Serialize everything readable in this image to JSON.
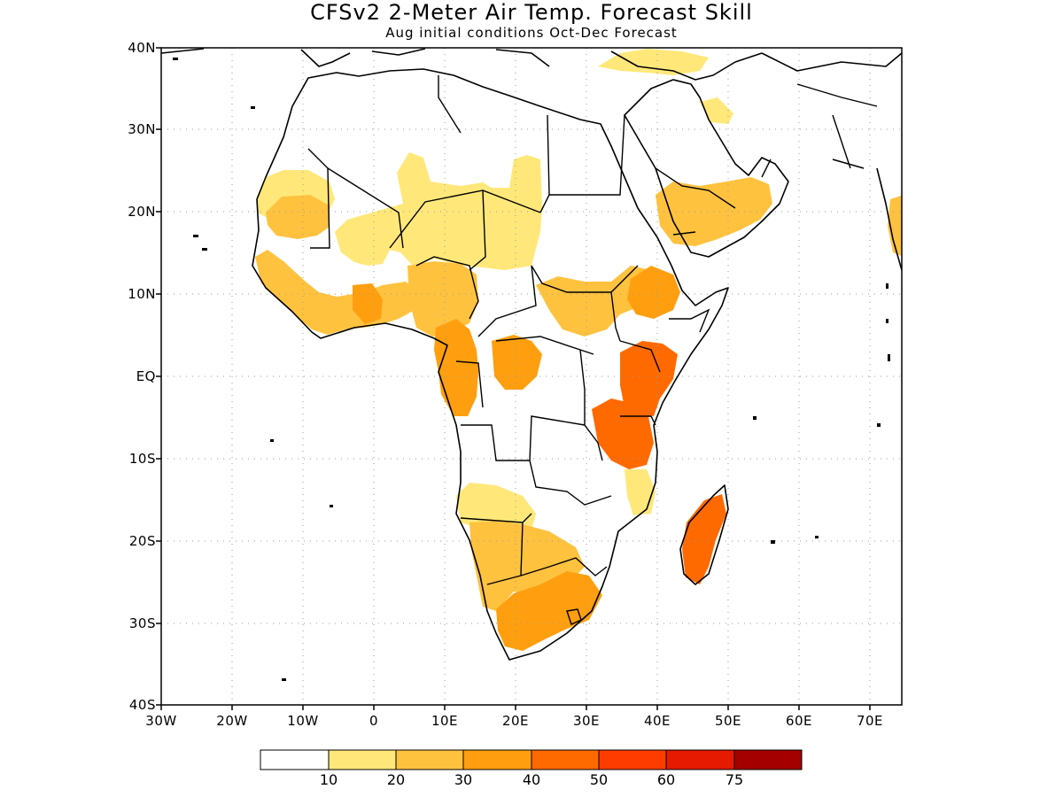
{
  "title": "CFSv2 2-Meter Air Temp. Forecast Skill",
  "subtitle": "Aug initial conditions  Oct-Dec Forecast",
  "axes": {
    "x_ticks": [
      "30W",
      "20W",
      "10W",
      "0",
      "10E",
      "20E",
      "30E",
      "40E",
      "50E",
      "60E",
      "70E"
    ],
    "y_ticks": [
      "40N",
      "30N",
      "20N",
      "10N",
      "EQ",
      "10S",
      "20S",
      "30S",
      "40S"
    ],
    "lon_range": [
      -30,
      75
    ],
    "lat_range": [
      -40,
      40
    ],
    "grid": "dotted"
  },
  "colorbar": {
    "labels": [
      "10",
      "20",
      "30",
      "40",
      "50",
      "60",
      "75"
    ],
    "colors": [
      "#ffffff",
      "#ffe879",
      "#ffc23f",
      "#ff9f0f",
      "#ff6a00",
      "#ff3c00",
      "#e51a00",
      "#a50000"
    ]
  },
  "regions": {
    "western_sahara": 1,
    "mauritania": 2,
    "sahel_west": 1,
    "west_africa_coast": 2,
    "guinea_coast": 3,
    "nigeria_cameroon": 2,
    "gabon_congo": 3,
    "central_africa": 3,
    "sudan": 2,
    "ethiopia": 3,
    "kenya": 4,
    "tanzania": 4,
    "arabia": 2,
    "levant": 1,
    "angola": 1,
    "namibia_botswana": 2,
    "south_africa": 3,
    "madagascar": 4,
    "mozambique": 1,
    "india": 2,
    "turkey": 1
  }
}
